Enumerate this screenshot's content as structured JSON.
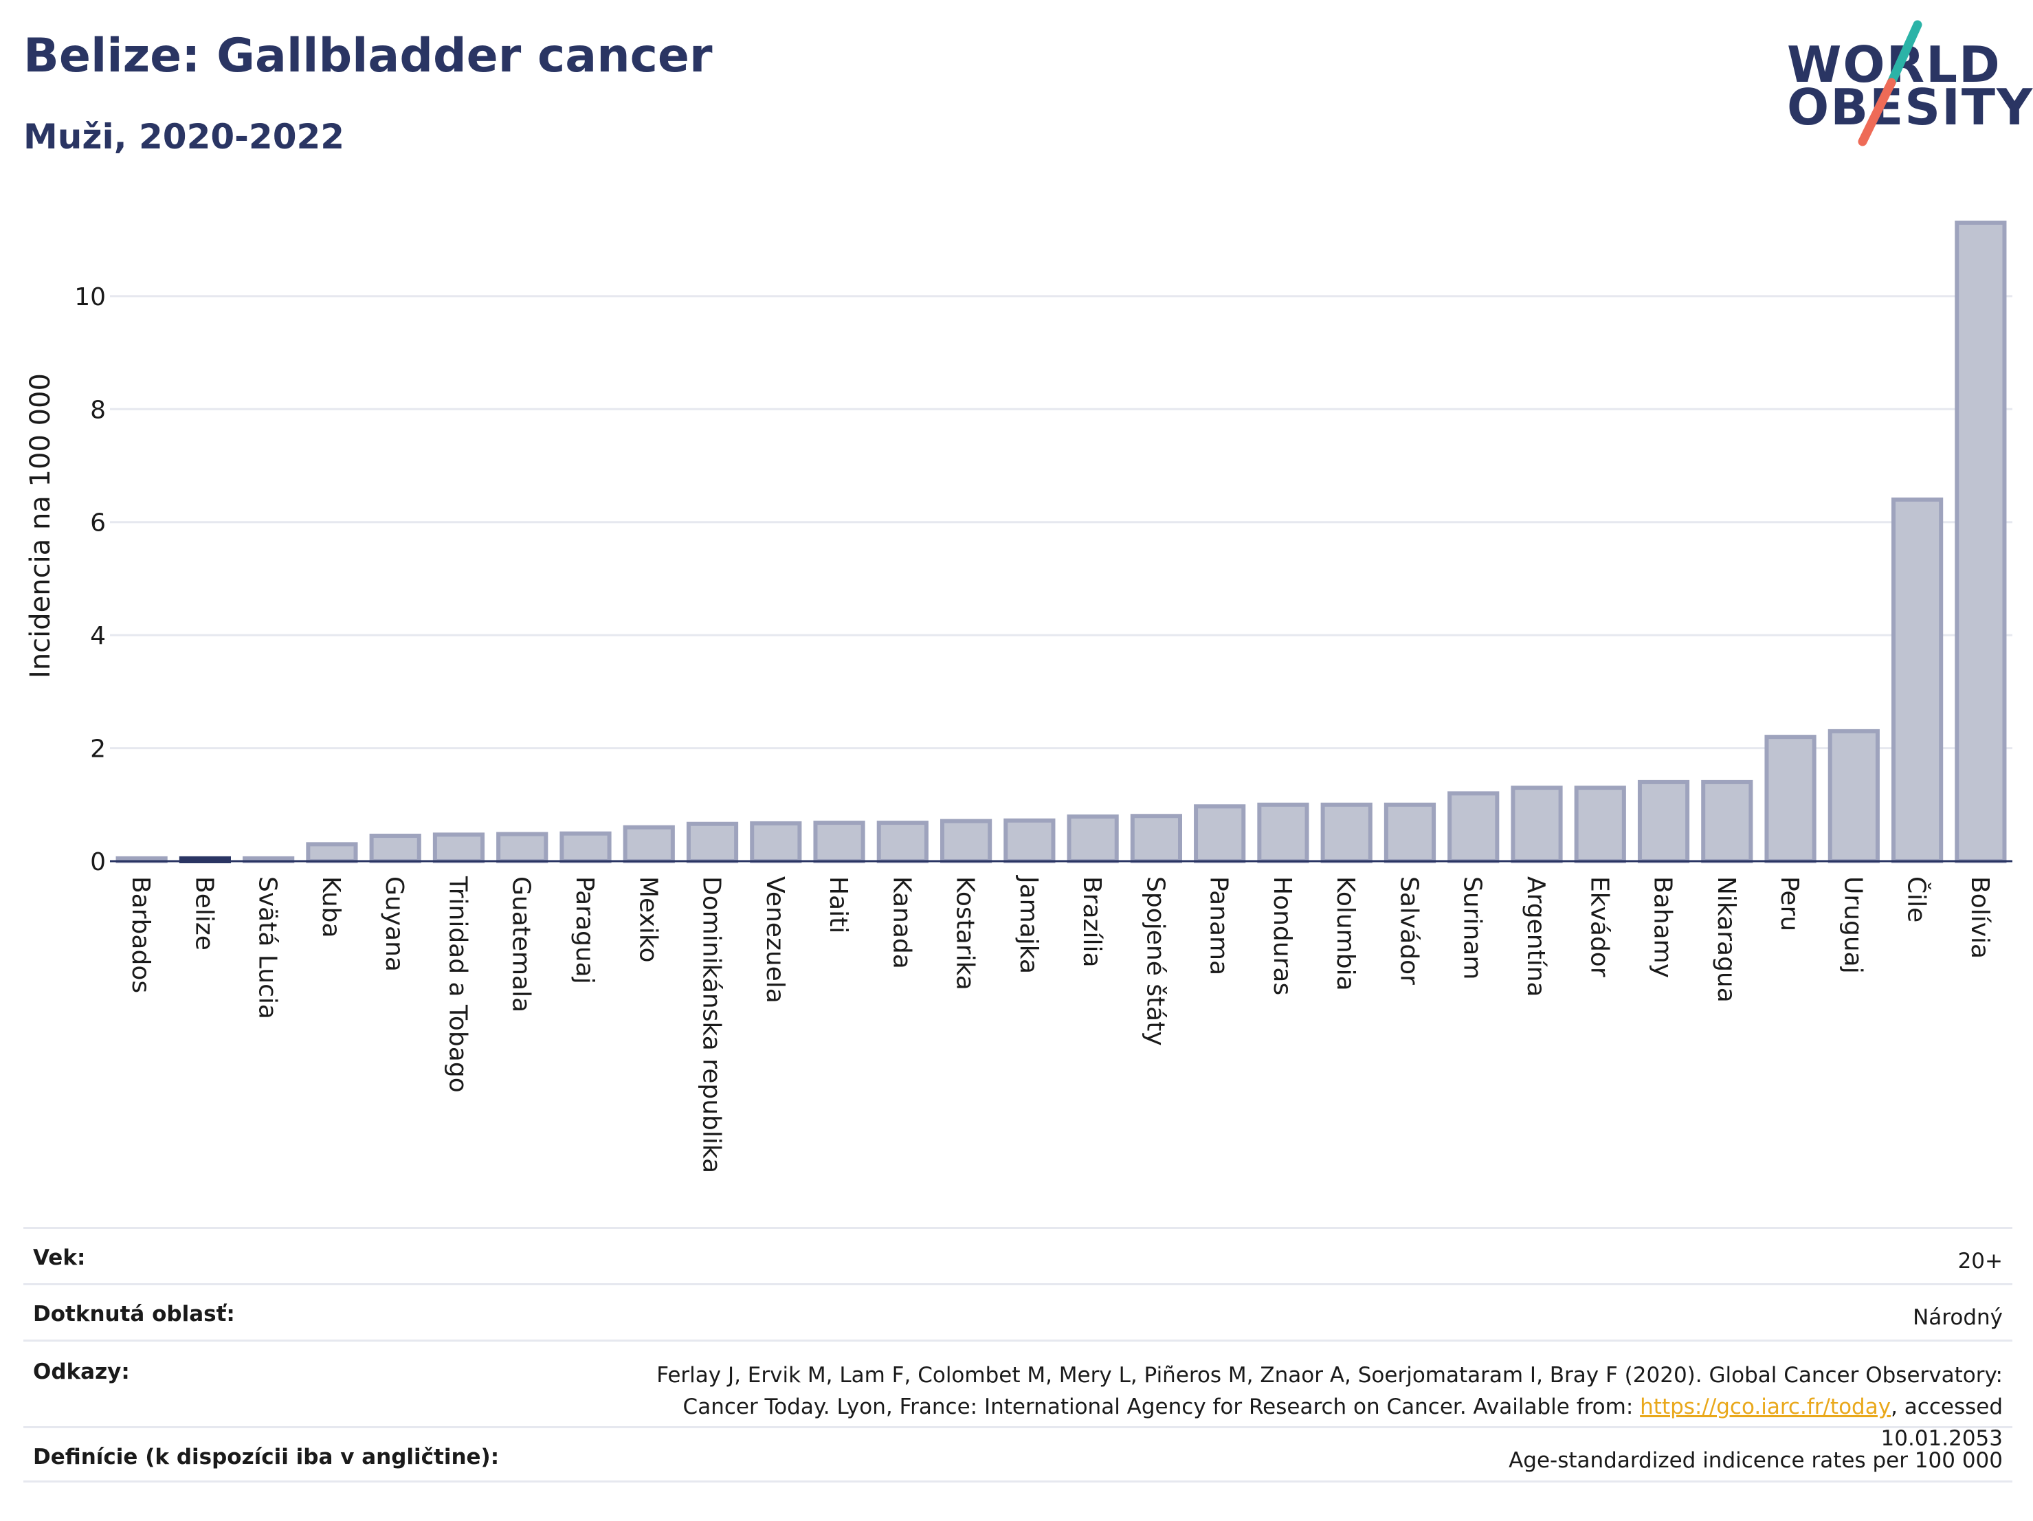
{
  "header": {
    "title": "Belize: Gallbladder cancer",
    "subtitle": "Muži, 2020-2022"
  },
  "logo": {
    "line1": "WORLD",
    "line2": "OBESITY"
  },
  "colors": {
    "title": "#2a3563",
    "bar": "#bfc3d1",
    "bar_stroke": "#9ea3bd",
    "highlight": "#2a3563",
    "link": "#e9a81b",
    "logo_teal": "#2bb3a7",
    "logo_coral": "#ee6b57"
  },
  "chart_data": {
    "type": "bar",
    "ylabel": "Incidencia na 100 000",
    "ylim": [
      0,
      11.3
    ],
    "yticks": [
      0,
      2,
      4,
      6,
      8,
      10
    ],
    "grid": true,
    "highlight": "Belize",
    "categories": [
      "Barbados",
      "Belize",
      "Svätá Lucia",
      "Kuba",
      "Guyana",
      "Trinidad a Tobago",
      "Guatemala",
      "Paraguaj",
      "Mexiko",
      "Dominikánska republika",
      "Venezuela",
      "Haiti",
      "Kanada",
      "Kostarika",
      "Jamajka",
      "Brazília",
      "Spojené štáty",
      "Panama",
      "Honduras",
      "Kolumbia",
      "Salvádor",
      "Surinam",
      "Argentína",
      "Ekvádor",
      "Bahamy",
      "Nikaragua",
      "Peru",
      "Uruguaj",
      "Čile",
      "Bolívia"
    ],
    "values": [
      0.05,
      0.05,
      0.05,
      0.3,
      0.45,
      0.47,
      0.48,
      0.49,
      0.6,
      0.66,
      0.67,
      0.68,
      0.68,
      0.71,
      0.72,
      0.79,
      0.8,
      0.97,
      1.0,
      1.0,
      1.0,
      1.2,
      1.3,
      1.3,
      1.4,
      1.4,
      2.2,
      2.3,
      6.4,
      11.3
    ]
  },
  "meta": {
    "age_label": "Vek:",
    "age_value": "20+",
    "area_label": "Dotknutá oblasť:",
    "area_value": "Národný",
    "refs_label": "Odkazy:",
    "refs_text_1": "Ferlay J, Ervik M, Lam F, Colombet M, Mery L, Piñeros M, Znaor A, Soerjomataram I, Bray F (2020). Global Cancer Observatory: Cancer Today. Lyon, France: International Agency for Research on Cancer. Available from: ",
    "refs_link": "https://gco.iarc.fr/today",
    "refs_text_2": ", accessed 10.01.2053",
    "def_label": "Definície (k dispozícii iba v angličtine):",
    "def_value": "Age-standardized indicence rates per 100 000"
  }
}
